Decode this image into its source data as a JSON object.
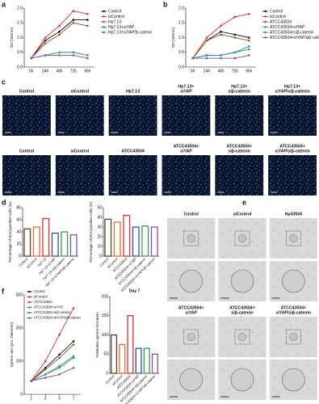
{
  "chart_data": [
    {
      "type": "line",
      "panel": "a",
      "y_label": "OD (450nm)",
      "legend": "right",
      "categories": [
        "0h",
        "24h",
        "48h",
        "72h",
        "96h"
      ],
      "ylim": [
        0,
        2
      ],
      "yticks": [
        {
          "value": 0,
          "label": "0.0"
        },
        {
          "value": 0.5,
          "label": "0.5"
        },
        {
          "value": 1,
          "label": "1.0"
        },
        {
          "value": 1.5,
          "label": "1.5"
        },
        {
          "value": 2,
          "label": "2.0"
        }
      ],
      "series": [
        {
          "name": "Control",
          "color": "#111111",
          "values": [
            0.3,
            0.9,
            1.2,
            1.6,
            1.6
          ]
        },
        {
          "name": "siControl",
          "color": "#8b5a2b",
          "values": [
            0.3,
            0.8,
            1.1,
            1.5,
            1.4
          ]
        },
        {
          "name": "Hp7.13",
          "color": "#e03030",
          "values": [
            0.3,
            1.0,
            1.4,
            1.9,
            1.8
          ]
        },
        {
          "name": "Hp7.13+siYAP",
          "color": "#2a8a8a",
          "values": [
            0.3,
            0.4,
            0.5,
            0.5,
            0.4
          ]
        },
        {
          "name": "Hp7.13+siYAP/β-catenin",
          "color": "#7b52b0",
          "values": [
            0.3,
            0.4,
            0.4,
            0.4,
            0.3
          ]
        }
      ]
    },
    {
      "type": "line",
      "panel": "b",
      "y_label": "OD (450nm)",
      "legend": "right",
      "categories": [
        "0h",
        "24h",
        "48h",
        "72h",
        "96h"
      ],
      "ylim": [
        0,
        2
      ],
      "yticks": [
        {
          "value": 0,
          "label": "0.0"
        },
        {
          "value": 0.5,
          "label": "0.5"
        },
        {
          "value": 1,
          "label": "1.0"
        },
        {
          "value": 1.5,
          "label": "1.5"
        },
        {
          "value": 2,
          "label": "2.0"
        }
      ],
      "series": [
        {
          "name": "Control",
          "color": "#111111",
          "values": [
            0.3,
            0.9,
            1.2,
            1.1,
            1.0
          ]
        },
        {
          "name": "siControl",
          "color": "#8b5a2b",
          "values": [
            0.3,
            0.9,
            1.1,
            1.0,
            0.9
          ]
        },
        {
          "name": "ATCC43504",
          "color": "#e03030",
          "values": [
            0.3,
            1.0,
            1.4,
            1.7,
            1.8
          ]
        },
        {
          "name": "ATCC43504+siYAP",
          "color": "#3a9a4a",
          "values": [
            0.3,
            0.4,
            0.4,
            0.5,
            0.6
          ]
        },
        {
          "name": "ATCC43504+siβ-catenin",
          "color": "#2a8a8a",
          "values": [
            0.3,
            0.4,
            0.4,
            0.5,
            0.7
          ]
        },
        {
          "name": "ATCC43504+siYAP/siβ-catenin",
          "color": "#7b52b0",
          "values": [
            0.3,
            0.3,
            0.3,
            0.3,
            0.4
          ]
        }
      ]
    },
    {
      "type": "bar",
      "panel": "d",
      "y_label": "Percentage of EDU positive cells (%)",
      "categories": [
        "Control",
        "siControl",
        "Hp7.13",
        "Hp7.13+siYAP",
        "Hp7.13+siβ-catenin",
        "Hp7.13+siYAP/siβ-catenin"
      ],
      "values": [
        45,
        48,
        62,
        38,
        40,
        35
      ],
      "colors": [
        "#5a4030",
        "#e07030",
        "#e03030",
        "#3050a0",
        "#3a9a4a",
        "#7b52b0"
      ],
      "ylim": [
        0,
        80
      ],
      "yticks": [
        0,
        20,
        40,
        60,
        80
      ]
    },
    {
      "type": "bar",
      "y_label": "Percentage of EDU positive cells (%)",
      "categories": [
        "Control",
        "siControl",
        "ATCC43504",
        "ATCC43504+siYAP",
        "ATCC43504+siβ-catenin",
        "ATCC43504+siYAP/siβ-catenin"
      ],
      "values": [
        38,
        35,
        42,
        30,
        31,
        30
      ],
      "colors": [
        "#5a4030",
        "#e07030",
        "#e03030",
        "#3050a0",
        "#3a9a4a",
        "#7b52b0"
      ],
      "ylim": [
        0,
        50
      ],
      "yticks": [
        0,
        10,
        20,
        30,
        40,
        50
      ]
    },
    {
      "type": "line",
      "panel": "f",
      "y_label": "Sphere size (μm, Diameter)",
      "legend": "upper left",
      "x": [
        1,
        3,
        5,
        7
      ],
      "xlim": [
        0,
        8
      ],
      "xticks": [
        1,
        3,
        5,
        7
      ],
      "ylim": [
        0,
        300
      ],
      "yticks": [
        0,
        100,
        200,
        300
      ],
      "series": [
        {
          "name": "Control",
          "color": "#111111",
          "values": [
            40,
            80,
            120,
            160
          ]
        },
        {
          "name": "siControl",
          "color": "#8b5a2b",
          "values": [
            40,
            75,
            110,
            150
          ]
        },
        {
          "name": "ATCC43504",
          "color": "#e03030",
          "values": [
            40,
            100,
            180,
            260
          ]
        },
        {
          "name": "ATCC43504+siYAP",
          "color": "#3a9a4a",
          "values": [
            40,
            60,
            80,
            110
          ]
        },
        {
          "name": "ATCC43504+siβ-catenin",
          "color": "#2a8a8a",
          "values": [
            40,
            60,
            85,
            115
          ]
        },
        {
          "name": "ATCC43504+siYAP/siβ-catenin",
          "color": "#7b52b0",
          "values": [
            40,
            50,
            60,
            80
          ]
        }
      ]
    },
    {
      "type": "bar",
      "title": "Day 7",
      "y_label": "%Relative sphere formation",
      "categories": [
        "Control",
        "siControl",
        "ATCC43504",
        "ATCC43504+siYAP",
        "ATCC43504+siβ-catenin",
        "ATCC43504+siYAP/siβ-catenin"
      ],
      "values": [
        100,
        75,
        150,
        65,
        65,
        50
      ],
      "colors": [
        "#5a4030",
        "#e07030",
        "#e03030",
        "#3050a0",
        "#3a9a4a",
        "#7b52b0"
      ],
      "ylim": [
        0,
        200
      ],
      "yticks": [
        0,
        50,
        100,
        150,
        200
      ]
    }
  ],
  "image_panels": [
    {
      "panel": "c",
      "labels": [
        [
          "Control"
        ],
        [
          "siControl"
        ],
        [
          "Hp7.13"
        ],
        [
          "Hp7.13+",
          "siYAP"
        ],
        [
          "Hp7.13+",
          "siβ-catenin"
        ],
        [
          "Hp7.13+",
          "siYAP/siβ-catenin"
        ],
        [
          "Control"
        ],
        [
          "siControl"
        ],
        [
          "ATCC43504"
        ],
        [
          "ATCC43504+",
          "siYAP"
        ],
        [
          "ATCC43504+",
          "siβ-catenin"
        ],
        [
          "ATCC43504+",
          "siYAP/siβ-catenin"
        ]
      ]
    },
    {
      "panel": "e",
      "labels": [
        [
          "Control"
        ],
        [
          "siControl"
        ],
        [
          "Hp43504"
        ],
        [
          "ATCC43504+",
          "siYAP"
        ],
        [
          "ATCC43504+",
          "siβ-catenin"
        ],
        [
          "ATCC43504+",
          "siYAP/siβ-catenin"
        ]
      ]
    }
  ]
}
